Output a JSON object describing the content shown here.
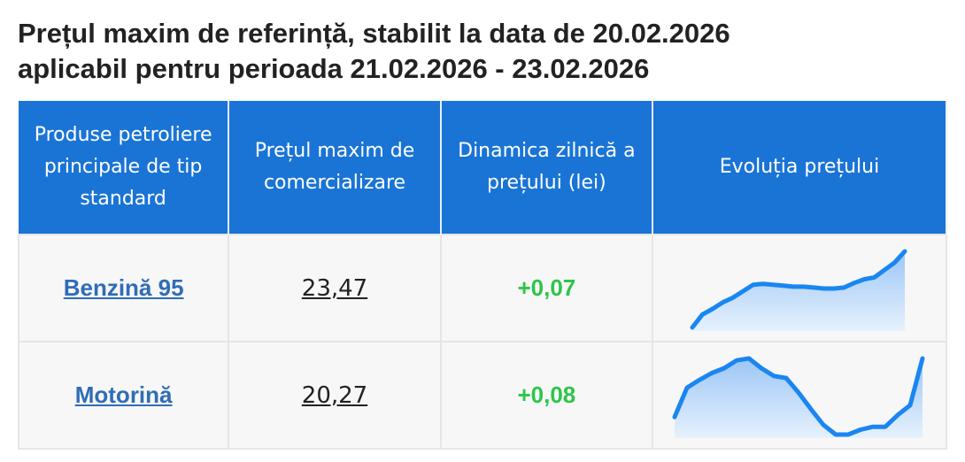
{
  "header": {
    "title_line1": "Prețul maxim de referință, stabilit la data de 20.02.2026",
    "title_line2": "aplicabil pentru perioada 21.02.2026 - 23.02.2026"
  },
  "table": {
    "columns": [
      "Produse petroliere principale de tip standard",
      "Prețul maxim de comercializare",
      "Dinamica zilnică a prețului (lei)",
      "Evoluția prețului"
    ],
    "rows": [
      {
        "product": "Benzină 95",
        "price": "23,47",
        "change": "+0,07",
        "trend": [
          8,
          22,
          28,
          35,
          40,
          47,
          54,
          55,
          54,
          53,
          52,
          52,
          51,
          50,
          50,
          51,
          56,
          60,
          62,
          70,
          78,
          90
        ]
      },
      {
        "product": "Motorină",
        "price": "20,27",
        "change": "+0,08",
        "trend": [
          30,
          60,
          68,
          75,
          80,
          88,
          90,
          80,
          72,
          70,
          55,
          38,
          22,
          12,
          12,
          17,
          20,
          20,
          32,
          42,
          90
        ]
      }
    ]
  }
}
